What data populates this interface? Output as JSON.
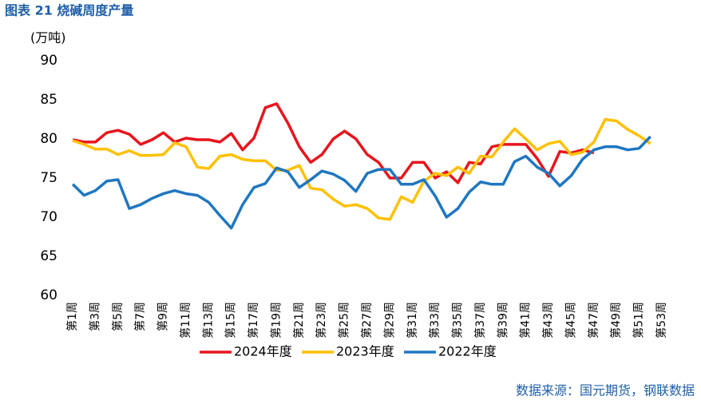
{
  "chart_data": {
    "type": "line",
    "title": "图表 21 烧碱周度产量",
    "y_label": "(万吨)",
    "source": "数据来源：国元期货，钢联数据",
    "categories": [
      "第1周",
      null,
      "第3周",
      null,
      "第5周",
      null,
      "第7周",
      null,
      "第9周",
      null,
      "第11周",
      null,
      "第13周",
      null,
      "第15周",
      null,
      "第17周",
      null,
      "第19周",
      null,
      "第21周",
      null,
      "第23周",
      null,
      "第25周",
      null,
      "第27周",
      null,
      "第29周",
      null,
      "第31周",
      null,
      "第33周",
      null,
      "第35周",
      null,
      "第37周",
      null,
      "第39周",
      null,
      "第41周",
      null,
      "第43周",
      null,
      "第45周",
      null,
      "第47周",
      null,
      "第49周",
      null,
      "第51周",
      null,
      "第53周"
    ],
    "series": [
      {
        "name": "2024年度",
        "color": "#e8141c",
        "values": [
          79.9,
          79.6,
          79.6,
          80.8,
          81.1,
          80.6,
          79.3,
          79.9,
          80.8,
          79.6,
          80.1,
          79.9,
          79.9,
          79.6,
          80.7,
          78.6,
          80.1,
          84.0,
          84.5,
          82.0,
          79.0,
          77.0,
          78.0,
          80.0,
          81.0,
          80.0,
          78.0,
          77.0,
          75.0,
          75.0,
          77.0,
          77.0,
          75.0,
          75.8,
          74.4,
          77.0,
          76.8,
          79.0,
          79.3,
          79.3,
          79.3,
          77.5,
          75.2,
          78.4,
          78.2,
          78.6,
          78.2,
          null,
          null,
          null,
          null,
          null,
          null
        ]
      },
      {
        "name": "2023年度",
        "color": "#ffc000",
        "values": [
          79.8,
          79.3,
          78.7,
          78.7,
          78.0,
          78.5,
          77.9,
          77.9,
          78.0,
          79.5,
          79.0,
          76.4,
          76.2,
          77.8,
          78.0,
          77.4,
          77.2,
          77.2,
          76.0,
          76.0,
          76.6,
          73.7,
          73.5,
          72.3,
          71.4,
          71.6,
          71.1,
          69.9,
          69.7,
          72.6,
          71.9,
          74.6,
          75.6,
          75.3,
          76.4,
          75.6,
          77.8,
          77.7,
          79.6,
          81.3,
          80.0,
          78.6,
          79.4,
          79.7,
          78.0,
          78.3,
          79.6,
          82.5,
          82.3,
          81.2,
          80.4,
          79.4,
          null
        ]
      },
      {
        "name": "2022年度",
        "color": "#1f77c0",
        "values": [
          74.2,
          72.8,
          73.4,
          74.6,
          74.8,
          71.1,
          71.6,
          72.4,
          73.0,
          73.4,
          73.0,
          72.8,
          71.9,
          70.2,
          68.6,
          71.6,
          73.8,
          74.3,
          76.3,
          75.8,
          73.8,
          74.8,
          75.9,
          75.5,
          74.7,
          73.3,
          75.6,
          76.1,
          76.1,
          74.2,
          74.2,
          74.8,
          72.7,
          70.0,
          71.1,
          73.2,
          74.5,
          74.2,
          74.2,
          77.1,
          77.8,
          76.4,
          75.6,
          74.0,
          75.3,
          77.4,
          78.6,
          79.0,
          79.0,
          78.6,
          78.8,
          80.3,
          null
        ]
      }
    ],
    "ylim": [
      60,
      90
    ],
    "yticks": [
      60,
      65,
      70,
      75,
      80,
      85,
      90
    ],
    "grid": false,
    "legend": "bottom"
  }
}
